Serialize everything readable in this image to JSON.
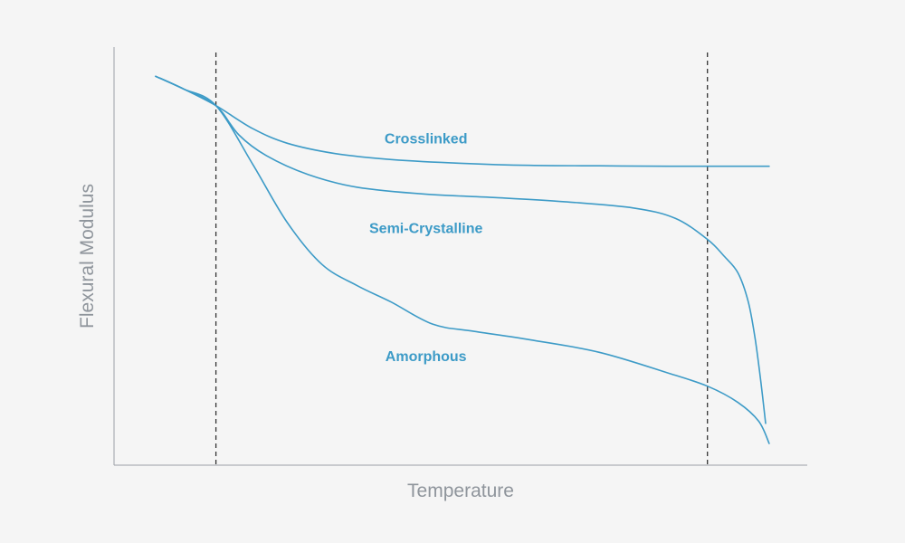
{
  "chart_data": {
    "type": "line",
    "title": "",
    "xlabel": "Temperature",
    "ylabel": "Flexural Modulus",
    "xlim": [
      0,
      100
    ],
    "ylim": [
      0,
      100
    ],
    "ticks": "none",
    "grid": false,
    "legend": "none",
    "colors": {
      "series": "#3d9bc7",
      "axis": "#9aa0a6",
      "axis_title": "#8f959c",
      "reference_line": "#333333"
    },
    "reference_lines_x": [
      14.7,
      85.6
    ],
    "series": [
      {
        "name": "Crosslinked",
        "label_at": [
          45,
          77
        ],
        "points": [
          [
            6,
            93
          ],
          [
            10,
            90
          ],
          [
            14.7,
            86
          ],
          [
            20,
            80.5
          ],
          [
            25,
            77
          ],
          [
            32,
            74.5
          ],
          [
            40,
            73.1
          ],
          [
            50,
            72.2
          ],
          [
            60,
            71.7
          ],
          [
            70,
            71.6
          ],
          [
            80,
            71.5
          ],
          [
            94.5,
            71.5
          ]
        ]
      },
      {
        "name": "Semi-Crystalline",
        "label_at": [
          45,
          55.5
        ],
        "points": [
          [
            6,
            93
          ],
          [
            10,
            90
          ],
          [
            14.7,
            86
          ],
          [
            18,
            79
          ],
          [
            22,
            74
          ],
          [
            28,
            69.5
          ],
          [
            35,
            66.5
          ],
          [
            45,
            64.8
          ],
          [
            55,
            64
          ],
          [
            65,
            63
          ],
          [
            75,
            61.5
          ],
          [
            81,
            59
          ],
          [
            85.6,
            54
          ],
          [
            88,
            50
          ],
          [
            90,
            46
          ],
          [
            91.5,
            39
          ],
          [
            92.5,
            30
          ],
          [
            93.3,
            20
          ],
          [
            94,
            10
          ]
        ]
      },
      {
        "name": "Amorphous",
        "label_at": [
          45,
          24.9
        ],
        "points": [
          [
            6,
            93
          ],
          [
            10,
            90
          ],
          [
            14.7,
            86
          ],
          [
            20,
            72
          ],
          [
            25,
            58
          ],
          [
            30,
            48
          ],
          [
            35,
            43
          ],
          [
            40,
            39
          ],
          [
            46,
            33.7
          ],
          [
            52,
            32
          ],
          [
            60,
            30
          ],
          [
            70,
            27
          ],
          [
            80,
            22
          ],
          [
            85.6,
            18.9
          ],
          [
            90,
            15
          ],
          [
            93,
            10.5
          ],
          [
            94.5,
            5.2
          ]
        ]
      }
    ]
  }
}
